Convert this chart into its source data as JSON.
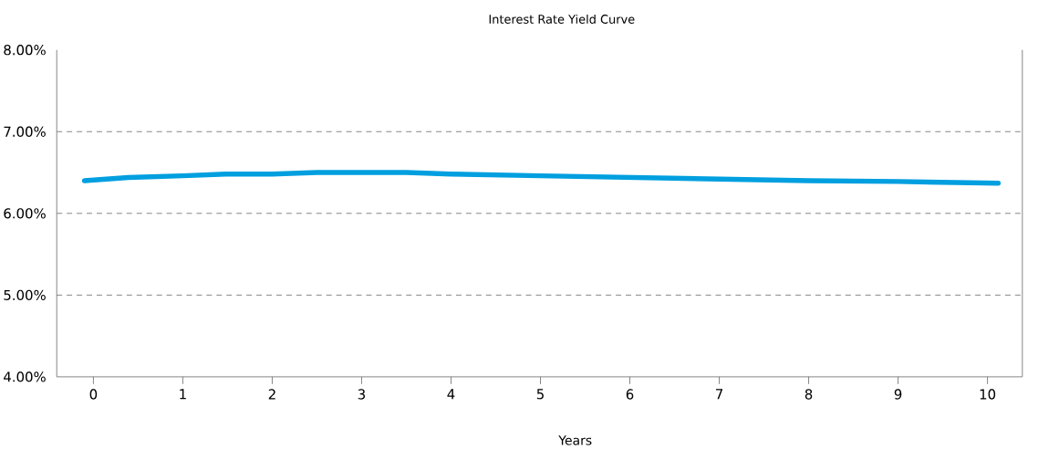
{
  "chart_data": {
    "type": "line",
    "title": "Interest Rate Yield Curve",
    "xlabel": "Years",
    "x": [
      -0.1,
      0.39,
      1,
      1.48,
      2,
      2.5,
      3.5,
      4,
      5,
      6,
      7,
      8,
      9,
      10.12
    ],
    "series": [
      {
        "color": "#009fdf",
        "values": [
          6.4,
          6.44,
          6.46,
          6.48,
          6.48,
          6.5,
          6.5,
          6.48,
          6.46,
          6.44,
          6.42,
          6.4,
          6.39,
          6.37
        ]
      }
    ],
    "xlim": [
      -0.41,
      10.39
    ],
    "xticks": [
      0,
      1,
      2,
      3,
      4,
      5,
      6,
      7,
      8,
      9,
      10
    ],
    "ylim": [
      4,
      8
    ],
    "yticks": [
      {
        "value": 4,
        "label": "4.00%"
      },
      {
        "value": 5,
        "label": "5.00%"
      },
      {
        "value": 6,
        "label": "6.00%"
      },
      {
        "value": 7,
        "label": "7.00%"
      },
      {
        "value": 8,
        "label": "8.00%"
      }
    ],
    "grid": "y",
    "marker": "none",
    "line_style": "solid"
  }
}
